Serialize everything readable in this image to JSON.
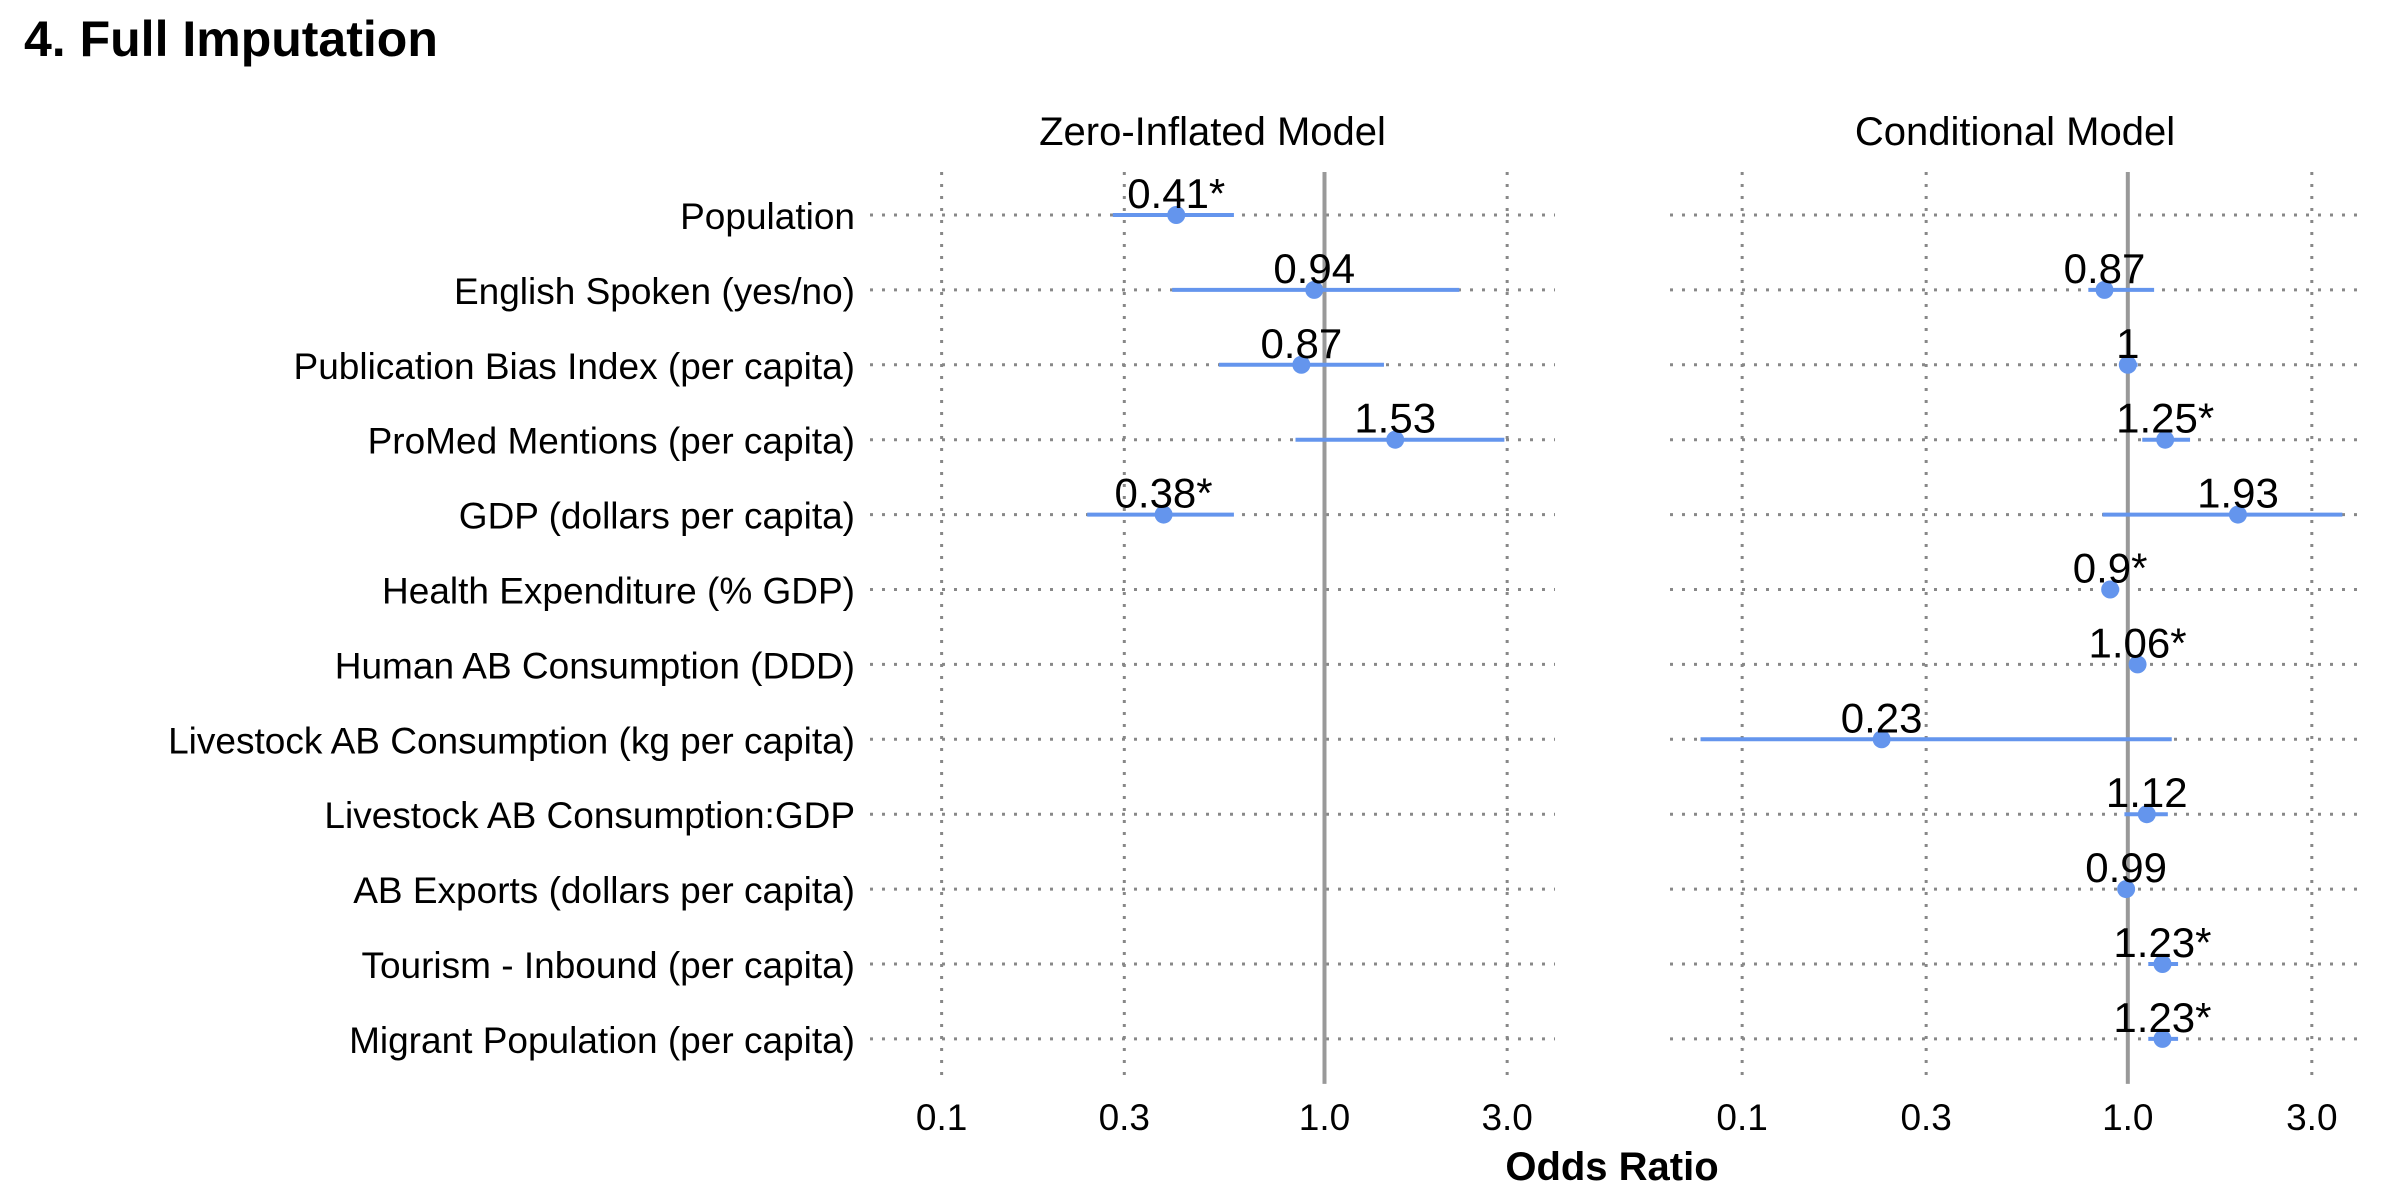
{
  "page": {
    "title": "4. Full Imputation"
  },
  "chart_data": {
    "type": "forest",
    "xlabel": "Odds Ratio",
    "x_scale": "log10",
    "xlim": [
      0.065,
      4.0
    ],
    "x_ticks": [
      0.1,
      0.3,
      1.0,
      3.0
    ],
    "x_tick_labels": [
      "0.1",
      "0.3",
      "1.0",
      "3.0"
    ],
    "reference_line": 1.0,
    "accent_color": "#6495ED",
    "reference_color": "#999999",
    "categories": [
      "Population",
      "English Spoken (yes/no)",
      "Publication Bias Index (per capita)",
      "ProMed Mentions (per capita)",
      "GDP (dollars per capita)",
      "Health Expenditure (% GDP)",
      "Human AB Consumption (DDD)",
      "Livestock AB Consumption (kg per capita)",
      "Livestock AB Consumption:GDP",
      "AB Exports (dollars per capita)",
      "Tourism - Inbound (per capita)",
      "Migrant Population (per capita)"
    ],
    "panels": [
      {
        "title": "Zero-Inflated Model",
        "points": [
          {
            "category": "Population",
            "or": 0.41,
            "lo": 0.28,
            "hi": 0.58,
            "label": "0.41*"
          },
          {
            "category": "English Spoken (yes/no)",
            "or": 0.94,
            "lo": 0.4,
            "hi": 2.25,
            "label": "0.94"
          },
          {
            "category": "Publication Bias Index (per capita)",
            "or": 0.87,
            "lo": 0.53,
            "hi": 1.43,
            "label": "0.87"
          },
          {
            "category": "ProMed Mentions (per capita)",
            "or": 1.53,
            "lo": 0.84,
            "hi": 2.95,
            "label": "1.53"
          },
          {
            "category": "GDP (dollars per capita)",
            "or": 0.38,
            "lo": 0.24,
            "hi": 0.58,
            "label": "0.38*"
          }
        ]
      },
      {
        "title": "Conditional Model",
        "points": [
          {
            "category": "English Spoken (yes/no)",
            "or": 0.87,
            "lo": 0.79,
            "hi": 1.17,
            "label": "0.87"
          },
          {
            "category": "Publication Bias Index (per capita)",
            "or": 1.0,
            "lo": 0.95,
            "hi": 1.06,
            "label": "1"
          },
          {
            "category": "ProMed Mentions (per capita)",
            "or": 1.25,
            "lo": 1.09,
            "hi": 1.45,
            "label": "1.25*"
          },
          {
            "category": "GDP (dollars per capita)",
            "or": 1.93,
            "lo": 0.86,
            "hi": 3.6,
            "label": "1.93"
          },
          {
            "category": "Health Expenditure (% GDP)",
            "or": 0.9,
            "lo": 0.86,
            "hi": 0.95,
            "label": "0.9*"
          },
          {
            "category": "Human AB Consumption (DDD)",
            "or": 1.06,
            "lo": 1.02,
            "hi": 1.11,
            "label": "1.06*"
          },
          {
            "category": "Livestock AB Consumption (kg per capita)",
            "or": 0.23,
            "lo": 0.078,
            "hi": 1.3,
            "label": "0.23"
          },
          {
            "category": "Livestock AB Consumption:GDP",
            "or": 1.12,
            "lo": 0.98,
            "hi": 1.27,
            "label": "1.12"
          },
          {
            "category": "AB Exports (dollars per capita)",
            "or": 0.99,
            "lo": 0.96,
            "hi": 1.02,
            "label": "0.99"
          },
          {
            "category": "Tourism - Inbound (per capita)",
            "or": 1.23,
            "lo": 1.13,
            "hi": 1.35,
            "label": "1.23*"
          },
          {
            "category": "Migrant Population (per capita)",
            "or": 1.23,
            "lo": 1.13,
            "hi": 1.35,
            "label": "1.23*"
          }
        ]
      }
    ]
  }
}
